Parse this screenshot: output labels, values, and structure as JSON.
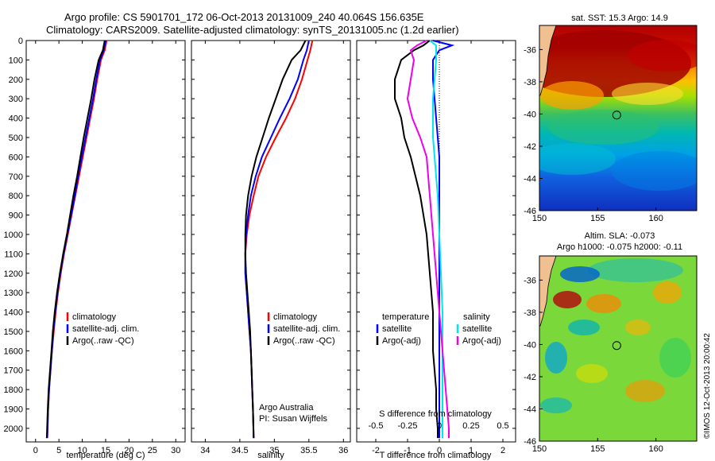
{
  "header": {
    "line1": "Argo profile: CS 5901701_172 06-Oct-2013 20131009_240 40.064S 156.635E",
    "line2": "Climatology: CARS2009. Satellite-adjusted climatology: synTS_20131005.nc (1.2d earlier)"
  },
  "colors": {
    "climatology": "#ff0000",
    "satellite": "#0000ff",
    "argo": "#000000",
    "satellite_salinity": "#00e5ee",
    "argo_salinity": "#ee00ee"
  },
  "chart_data": [
    {
      "type": "line",
      "panel": "temperature",
      "xlabel": "temperature (deg C)",
      "ylabel": "",
      "xlim": [
        -2,
        32
      ],
      "ylim": [
        2070,
        0
      ],
      "xticks": [
        0,
        5,
        10,
        15,
        20,
        25,
        30
      ],
      "yticks": [
        0,
        100,
        200,
        300,
        400,
        500,
        600,
        700,
        800,
        900,
        1000,
        1100,
        1200,
        1300,
        1400,
        1500,
        1600,
        1700,
        1800,
        1900,
        2000
      ],
      "legend": {
        "placement": "middle-center",
        "entries": [
          "climatology",
          "satellite-adj. clim.",
          "Argo(..raw -QC)"
        ]
      },
      "series": [
        {
          "name": "climatology",
          "color": "#ff0000",
          "x": [
            15.2,
            14.8,
            14.0,
            13.2,
            12.5,
            11.7,
            10.9,
            10.1,
            9.3,
            8.5,
            7.7,
            6.9,
            6.1,
            5.4,
            4.8,
            4.3,
            3.9,
            3.5,
            3.2,
            2.9,
            2.7,
            2.5
          ],
          "y": [
            0,
            50,
            100,
            200,
            300,
            400,
            500,
            600,
            700,
            800,
            900,
            1000,
            1100,
            1200,
            1300,
            1400,
            1500,
            1600,
            1700,
            1800,
            1900,
            2050
          ]
        },
        {
          "name": "satellite-adj. clim.",
          "color": "#0000ff",
          "x": [
            15.0,
            14.6,
            13.8,
            13.0,
            12.3,
            11.5,
            10.7,
            9.9,
            9.1,
            8.4,
            7.6,
            6.8,
            6.0,
            5.3,
            4.7,
            4.2,
            3.8,
            3.5,
            3.2,
            2.9,
            2.7,
            2.5
          ],
          "y": [
            0,
            50,
            100,
            200,
            300,
            400,
            500,
            600,
            700,
            800,
            900,
            1000,
            1100,
            1200,
            1300,
            1400,
            1500,
            1600,
            1700,
            1800,
            1900,
            2050
          ]
        },
        {
          "name": "Argo(..raw -QC)",
          "color": "#000000",
          "x": [
            14.8,
            14.4,
            13.5,
            12.6,
            11.9,
            11.1,
            10.3,
            9.6,
            8.9,
            8.1,
            7.4,
            6.7,
            5.9,
            5.2,
            4.6,
            4.1,
            3.7,
            3.4,
            3.1,
            2.8,
            2.6,
            2.4
          ],
          "y": [
            0,
            50,
            100,
            200,
            300,
            400,
            500,
            600,
            700,
            800,
            900,
            1000,
            1100,
            1200,
            1300,
            1400,
            1500,
            1600,
            1700,
            1800,
            1900,
            2050
          ]
        }
      ]
    },
    {
      "type": "line",
      "panel": "salinity",
      "xlabel": "salinity",
      "ylabel": "",
      "xlim": [
        33.8,
        36.1
      ],
      "ylim": [
        2070,
        0
      ],
      "xticks": [
        34,
        34.5,
        35,
        35.5,
        36
      ],
      "xticklabels": [
        "34",
        "34.5",
        "35",
        "35.5",
        "36"
      ],
      "legend": {
        "placement": "middle-right",
        "entries": [
          "climatology",
          "satellite-adj. clim.",
          "Argo(..raw -QC)"
        ]
      },
      "annotation": [
        "Argo Australia",
        "PI: Susan Wijffels"
      ],
      "series": [
        {
          "name": "climatology",
          "color": "#ff0000",
          "x": [
            35.55,
            35.52,
            35.48,
            35.4,
            35.3,
            35.17,
            35.02,
            34.88,
            34.77,
            34.7,
            34.64,
            34.6,
            34.58,
            34.58,
            34.6,
            34.62,
            34.64,
            34.66,
            34.67,
            34.68,
            34.69,
            34.7
          ],
          "y": [
            0,
            50,
            100,
            200,
            300,
            400,
            500,
            600,
            700,
            800,
            900,
            1000,
            1100,
            1200,
            1300,
            1400,
            1500,
            1600,
            1700,
            1800,
            1900,
            2050
          ]
        },
        {
          "name": "satellite-adj. clim.",
          "color": "#0000ff",
          "x": [
            35.5,
            35.47,
            35.42,
            35.34,
            35.22,
            35.08,
            34.95,
            34.82,
            34.73,
            34.66,
            34.62,
            34.59,
            34.58,
            34.58,
            34.6,
            34.62,
            34.64,
            34.66,
            34.67,
            34.68,
            34.69,
            34.7
          ],
          "y": [
            0,
            50,
            100,
            200,
            300,
            400,
            500,
            600,
            700,
            800,
            900,
            1000,
            1100,
            1200,
            1300,
            1400,
            1500,
            1600,
            1700,
            1800,
            1900,
            2050
          ]
        },
        {
          "name": "Argo(..raw -QC)",
          "color": "#000000",
          "x": [
            35.45,
            35.38,
            35.25,
            35.12,
            35.02,
            34.92,
            34.83,
            34.74,
            34.67,
            34.62,
            34.59,
            34.58,
            34.58,
            34.59,
            34.61,
            34.63,
            34.65,
            34.66,
            34.67,
            34.68,
            34.69,
            34.7
          ],
          "y": [
            0,
            50,
            100,
            200,
            300,
            400,
            500,
            600,
            700,
            800,
            900,
            1000,
            1100,
            1200,
            1300,
            1400,
            1500,
            1600,
            1700,
            1800,
            1900,
            2050
          ]
        }
      ]
    },
    {
      "type": "line",
      "panel": "difference",
      "xlabel": "T difference from climatology",
      "xlabel_top": "S difference from climatology",
      "xlim": [
        -2.6,
        2.4
      ],
      "ylim": [
        2070,
        0
      ],
      "xticks": [
        -2,
        -1,
        0,
        1,
        2
      ],
      "s_ticklabels": [
        "-0.5",
        "-0.25",
        "0",
        "0.25",
        "0.5"
      ],
      "zero_line": "dotted",
      "legend": {
        "placement": "middle",
        "temperature_heading": "temperature",
        "salinity_heading": "salinity",
        "temperature_entries": [
          "satellite",
          "Argo(-adj)"
        ],
        "salinity_entries": [
          "satellite",
          "Argo(-adj)"
        ]
      },
      "series": [
        {
          "name": "temperature satellite",
          "color": "#0000ff",
          "x": [
            -0.2,
            0.4,
            0.0,
            -0.2,
            -0.2,
            -0.15,
            -0.1,
            -0.05,
            0.0,
            0.0,
            0.0,
            0.0,
            0.0,
            0.0,
            0.0,
            0.0,
            0.0,
            0.0,
            0.0,
            0.0
          ],
          "y": [
            0,
            25,
            50,
            100,
            200,
            300,
            400,
            500,
            600,
            800,
            1000,
            1200,
            1400,
            1500,
            1600,
            1700,
            1800,
            1900,
            2000,
            2050
          ]
        },
        {
          "name": "temperature Argo(-adj)",
          "color": "#000000",
          "x": [
            -0.3,
            -0.5,
            -0.8,
            -1.2,
            -1.4,
            -1.4,
            -1.2,
            -1.1,
            -0.9,
            -0.6,
            -0.4,
            -0.3,
            -0.2,
            -0.2,
            -0.2,
            -0.15,
            -0.1,
            -0.1,
            -0.05,
            -0.05
          ],
          "y": [
            0,
            25,
            50,
            100,
            200,
            300,
            400,
            500,
            600,
            800,
            1000,
            1200,
            1400,
            1500,
            1600,
            1700,
            1800,
            1900,
            2000,
            2050
          ]
        },
        {
          "name": "salinity satellite",
          "color": "#00e5ee",
          "x": [
            -0.3,
            -0.1,
            -0.1,
            -0.1,
            -0.15,
            -0.2,
            -0.2,
            -0.2,
            -0.15,
            -0.05,
            0.0,
            0.05,
            0.1,
            0.1,
            0.1,
            0.1,
            0.1,
            0.1,
            0.1,
            0.1
          ],
          "y": [
            0,
            25,
            50,
            100,
            200,
            300,
            400,
            500,
            600,
            800,
            1000,
            1200,
            1400,
            1500,
            1600,
            1700,
            1800,
            1900,
            2000,
            2050
          ]
        },
        {
          "name": "salinity Argo(-adj)",
          "color": "#ee00ee",
          "x": [
            -0.4,
            -0.7,
            -0.9,
            -0.8,
            -0.9,
            -1.0,
            -0.85,
            -0.6,
            -0.4,
            -0.3,
            -0.2,
            -0.1,
            0.0,
            0.05,
            0.1,
            0.15,
            0.2,
            0.25,
            0.3,
            0.3
          ],
          "y": [
            0,
            25,
            50,
            100,
            200,
            300,
            400,
            500,
            600,
            800,
            1000,
            1200,
            1400,
            1500,
            1600,
            1700,
            1800,
            1900,
            2000,
            2050
          ]
        }
      ]
    },
    {
      "type": "heatmap",
      "panel": "sst-map",
      "title": "sat. SST: 15.3 Argo: 14.9",
      "xlim": [
        150,
        163.5
      ],
      "ylim": [
        -46,
        -34.5
      ],
      "xticks": [
        150,
        155,
        160
      ],
      "yticks": [
        -46,
        -44,
        -42,
        -40,
        -38,
        -36
      ],
      "marker": {
        "lon": 156.635,
        "lat": -40.064
      }
    },
    {
      "type": "heatmap",
      "panel": "sla-map",
      "title": "Altim. SLA: -0.073",
      "subtitle": "Argo h1000: -0.075 h2000: -0.11",
      "xlim": [
        150,
        163.5
      ],
      "ylim": [
        -46,
        -34.5
      ],
      "xticks": [
        150,
        155,
        160
      ],
      "yticks": [
        -46,
        -44,
        -42,
        -40,
        -38,
        -36
      ],
      "marker": {
        "lon": 156.635,
        "lat": -40.064
      }
    }
  ],
  "credit": "©IMOS 12-Oct-2013 20:00:42"
}
